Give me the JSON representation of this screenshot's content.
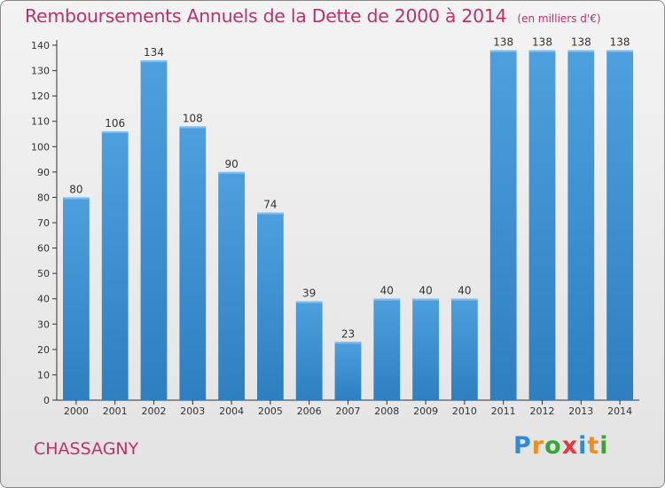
{
  "chart_data": {
    "type": "bar",
    "title": "Remboursements Annuels de la Dette de 2000 à 2014",
    "unit_note": "(en milliers d'€)",
    "categories": [
      "2000",
      "2001",
      "2002",
      "2003",
      "2004",
      "2005",
      "2006",
      "2007",
      "2008",
      "2009",
      "2010",
      "2011",
      "2012",
      "2013",
      "2014"
    ],
    "values": [
      80,
      106,
      134,
      108,
      90,
      74,
      39,
      23,
      40,
      40,
      40,
      138,
      138,
      138,
      138
    ],
    "xlabel": "",
    "ylabel": "",
    "ylim": [
      0,
      140
    ],
    "yticks": [
      0,
      10,
      20,
      30,
      40,
      50,
      60,
      70,
      80,
      90,
      100,
      110,
      120,
      130,
      140
    ],
    "grid": false,
    "bar_color": "#4d9fde",
    "bar_color_dark": "#2e7fc0"
  },
  "commune": "CHASSAGNY",
  "logo": {
    "letters": [
      "P",
      "r",
      "o",
      "x",
      "i",
      "t",
      "i"
    ],
    "colors": [
      "#2f8ad8",
      "#f28c1c",
      "#3aa43a",
      "#e23a3a",
      "#2f8ad8",
      "#f28c1c",
      "#3aa43a"
    ]
  },
  "colors": {
    "title": "#b8326b",
    "axis": "#333333"
  }
}
